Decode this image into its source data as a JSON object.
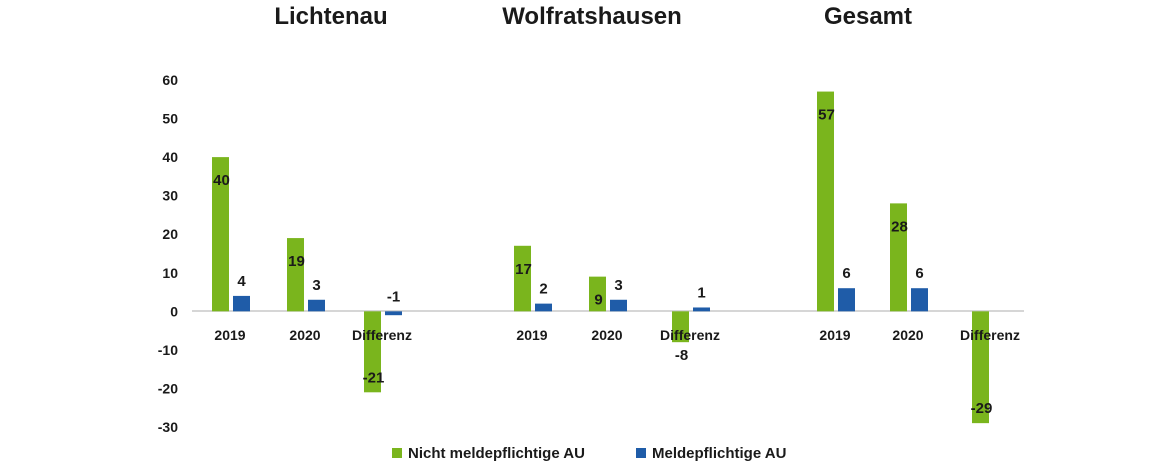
{
  "chart_data": {
    "type": "bar",
    "groups": [
      {
        "title": "Lichtenau",
        "categories": [
          "2019",
          "2020",
          "Differenz"
        ]
      },
      {
        "title": "Wolfratshausen",
        "categories": [
          "2019",
          "2020",
          "Differenz"
        ]
      },
      {
        "title": "Gesamt",
        "categories": [
          "2019",
          "2020",
          "Differenz"
        ]
      }
    ],
    "series": [
      {
        "name": "Nicht meldepflichtige AU",
        "color": "#7ab51d",
        "values": [
          40,
          19,
          -21,
          17,
          9,
          -8,
          57,
          28,
          -29
        ]
      },
      {
        "name": "Meldepflichtige AU",
        "color": "#1f5ca8",
        "values": [
          4,
          3,
          -1,
          2,
          3,
          1,
          6,
          6,
          null
        ]
      }
    ],
    "y_ticks": [
      "60",
      "50",
      "40",
      "30",
      "20",
      "10",
      "0",
      "-10",
      "-20",
      "-30"
    ],
    "ylim": [
      -30,
      60
    ],
    "grid": false,
    "legend_position": "bottom"
  }
}
